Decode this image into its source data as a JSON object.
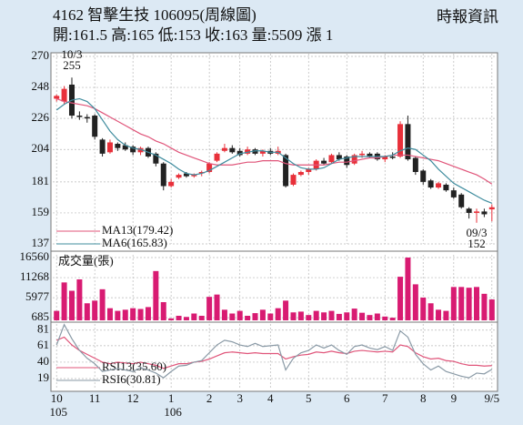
{
  "chart_data": [
    {
      "type": "candlestick",
      "title": "4162 智擊生技 106095(周線圖)",
      "subtitle": "開:161.5 高:165 低:153 收:163 量:5509 漲 1",
      "source": "時報資訊",
      "open": [
        240,
        238,
        250,
        228,
        227,
        228,
        211,
        202,
        208,
        207,
        206,
        202,
        205,
        201,
        194,
        178,
        184,
        187,
        185,
        187,
        188,
        196,
        203,
        205,
        203,
        201,
        204,
        201,
        203,
        201,
        200,
        179,
        186,
        188,
        190,
        196,
        195,
        200,
        199,
        194,
        200,
        201,
        201,
        197,
        199,
        199,
        222,
        198,
        189,
        182,
        177,
        179,
        175,
        172,
        162,
        159,
        160,
        161.5
      ],
      "high": [
        243,
        249,
        255,
        231,
        229,
        229,
        212,
        211,
        209,
        209,
        207,
        206,
        206,
        202,
        195,
        183,
        187,
        188,
        187,
        189,
        195,
        202,
        208,
        207,
        205,
        206,
        205,
        204,
        205,
        206,
        201,
        187,
        189,
        191,
        197,
        198,
        201,
        202,
        200,
        201,
        203,
        202,
        202,
        200,
        202,
        224,
        228,
        199,
        190,
        183,
        181,
        180,
        177,
        173,
        163,
        162,
        162,
        165
      ],
      "low": [
        238,
        236,
        226,
        225,
        223,
        211,
        199,
        201,
        203,
        203,
        200,
        200,
        198,
        192,
        175,
        177,
        183,
        184,
        184,
        185,
        187,
        195,
        202,
        201,
        199,
        200,
        200,
        199,
        200,
        200,
        177,
        178,
        185,
        186,
        189,
        193,
        194,
        196,
        191,
        193,
        198,
        198,
        196,
        195,
        197,
        198,
        196,
        186,
        179,
        176,
        176,
        174,
        169,
        162,
        155,
        152,
        156,
        153
      ],
      "close": [
        242,
        247,
        228,
        227,
        226,
        213,
        201,
        209,
        205,
        204,
        202,
        205,
        199,
        194,
        178,
        181,
        186,
        185,
        186,
        188,
        194,
        201,
        205,
        202,
        200,
        204,
        201,
        203,
        201,
        203,
        178,
        186,
        188,
        190,
        196,
        194,
        200,
        197,
        193,
        200,
        201,
        199,
        197,
        199,
        198,
        222,
        197,
        188,
        181,
        177,
        180,
        175,
        170,
        163,
        159,
        160,
        158,
        163
      ],
      "up_color": "#e8303a",
      "down_color": "#222222",
      "annotations": [
        {
          "text": [
            "10/3",
            "255"
          ],
          "x": 2,
          "y": 255,
          "position": "above"
        },
        {
          "text": [
            "09/3",
            "152"
          ],
          "x": 55,
          "y": 152,
          "position": "below"
        }
      ],
      "series": [
        {
          "name": "MA13(179.42)",
          "color": "#e0557a",
          "values": [
            240,
            238,
            237,
            236,
            235,
            233,
            230,
            227,
            224,
            221,
            218,
            215,
            213,
            210,
            208,
            205,
            202,
            200,
            198,
            196,
            194,
            193,
            193,
            193,
            194,
            195,
            195,
            196,
            196,
            196,
            194,
            193,
            193,
            193,
            193,
            193,
            194,
            195,
            195,
            196,
            197,
            198,
            198,
            199,
            200,
            200,
            200,
            199,
            198,
            197,
            196,
            194,
            192,
            190,
            188,
            186,
            183,
            179.42
          ]
        },
        {
          "name": "MA6(165.83)",
          "color": "#3f8c9e",
          "values": [
            232,
            236,
            239,
            240,
            238,
            233,
            225,
            217,
            211,
            207,
            205,
            204,
            202,
            200,
            197,
            194,
            190,
            187,
            186,
            187,
            189,
            192,
            195,
            198,
            201,
            202,
            203,
            203,
            202,
            202,
            198,
            194,
            191,
            190,
            190,
            191,
            194,
            197,
            198,
            199,
            199,
            199,
            199,
            199,
            200,
            203,
            205,
            204,
            200,
            196,
            190,
            185,
            180,
            177,
            174,
            171,
            168,
            165.83
          ]
        }
      ],
      "ylim": [
        137,
        270
      ],
      "yticks": [
        137,
        159,
        181,
        204,
        226,
        248,
        270
      ],
      "grid": true
    },
    {
      "type": "bar",
      "title": "成交量(張)",
      "color": "#d81b72",
      "values": [
        2500,
        10000,
        7800,
        10800,
        4500,
        5200,
        8200,
        3200,
        2500,
        2800,
        3200,
        3000,
        3500,
        13000,
        4800,
        500,
        1200,
        900,
        1800,
        1200,
        6200,
        6800,
        2800,
        1800,
        2500,
        1200,
        1900,
        2800,
        1800,
        3200,
        5200,
        2100,
        2300,
        1400,
        2500,
        2100,
        2500,
        1700,
        2100,
        3100,
        2000,
        1400,
        1800,
        1000,
        700,
        11500,
        16560,
        9500,
        6000,
        4500,
        2800,
        2500,
        8800,
        8800,
        8600,
        8800,
        7000,
        5509
      ],
      "ylim": [
        0,
        16560
      ],
      "yticks": [
        685,
        5977,
        11268,
        16560
      ],
      "grid": true
    },
    {
      "type": "line",
      "categories": [
        "10",
        null,
        null,
        null,
        null,
        "11",
        null,
        null,
        null,
        null,
        "12",
        null,
        null,
        null,
        null,
        "1",
        null,
        null,
        null,
        null,
        "2",
        null,
        null,
        null,
        "3",
        null,
        null,
        null,
        "4",
        null,
        null,
        null,
        null,
        "5",
        null,
        null,
        null,
        null,
        "6",
        null,
        null,
        null,
        null,
        "7",
        null,
        null,
        null,
        null,
        "8",
        null,
        null,
        null,
        "9",
        null,
        null,
        null,
        null,
        "9/5"
      ],
      "x_sublabels": [
        "105",
        null,
        null,
        null,
        null,
        null,
        null,
        null,
        null,
        null,
        null,
        null,
        null,
        null,
        null,
        "106",
        null,
        null,
        null,
        null,
        null,
        null,
        null,
        null,
        null,
        null,
        null,
        null,
        null,
        null,
        null,
        null,
        null,
        null,
        null,
        null,
        null,
        null,
        null,
        null,
        null,
        null,
        null,
        null,
        null,
        null,
        null,
        null,
        null,
        null,
        null,
        null,
        null,
        null,
        null,
        null,
        null,
        null
      ],
      "series": [
        {
          "name": "RSI13(35.60)",
          "color": "#e0557a",
          "values": [
            68,
            72,
            62,
            55,
            50,
            45,
            40,
            38,
            40,
            39,
            38,
            40,
            38,
            36,
            32,
            35,
            38,
            38,
            40,
            41,
            44,
            48,
            52,
            53,
            52,
            51,
            52,
            51,
            51,
            51,
            44,
            47,
            49,
            50,
            53,
            52,
            54,
            52,
            51,
            54,
            55,
            54,
            53,
            54,
            53,
            62,
            60,
            52,
            47,
            44,
            45,
            42,
            41,
            38,
            36,
            36,
            35,
            35.6
          ]
        },
        {
          "name": "RSI6(30.81)",
          "color": "#8a9aa6",
          "values": [
            62,
            88,
            70,
            55,
            45,
            38,
            28,
            30,
            32,
            30,
            28,
            33,
            30,
            26,
            20,
            28,
            35,
            36,
            40,
            42,
            52,
            62,
            68,
            66,
            62,
            60,
            64,
            60,
            61,
            62,
            30,
            45,
            52,
            55,
            62,
            58,
            62,
            55,
            50,
            60,
            62,
            58,
            56,
            60,
            55,
            80,
            72,
            50,
            38,
            30,
            35,
            28,
            25,
            22,
            20,
            26,
            25,
            30.81
          ]
        }
      ],
      "ylim": [
        5,
        90
      ],
      "yticks": [
        19,
        40,
        61,
        81
      ],
      "grid": true
    }
  ]
}
